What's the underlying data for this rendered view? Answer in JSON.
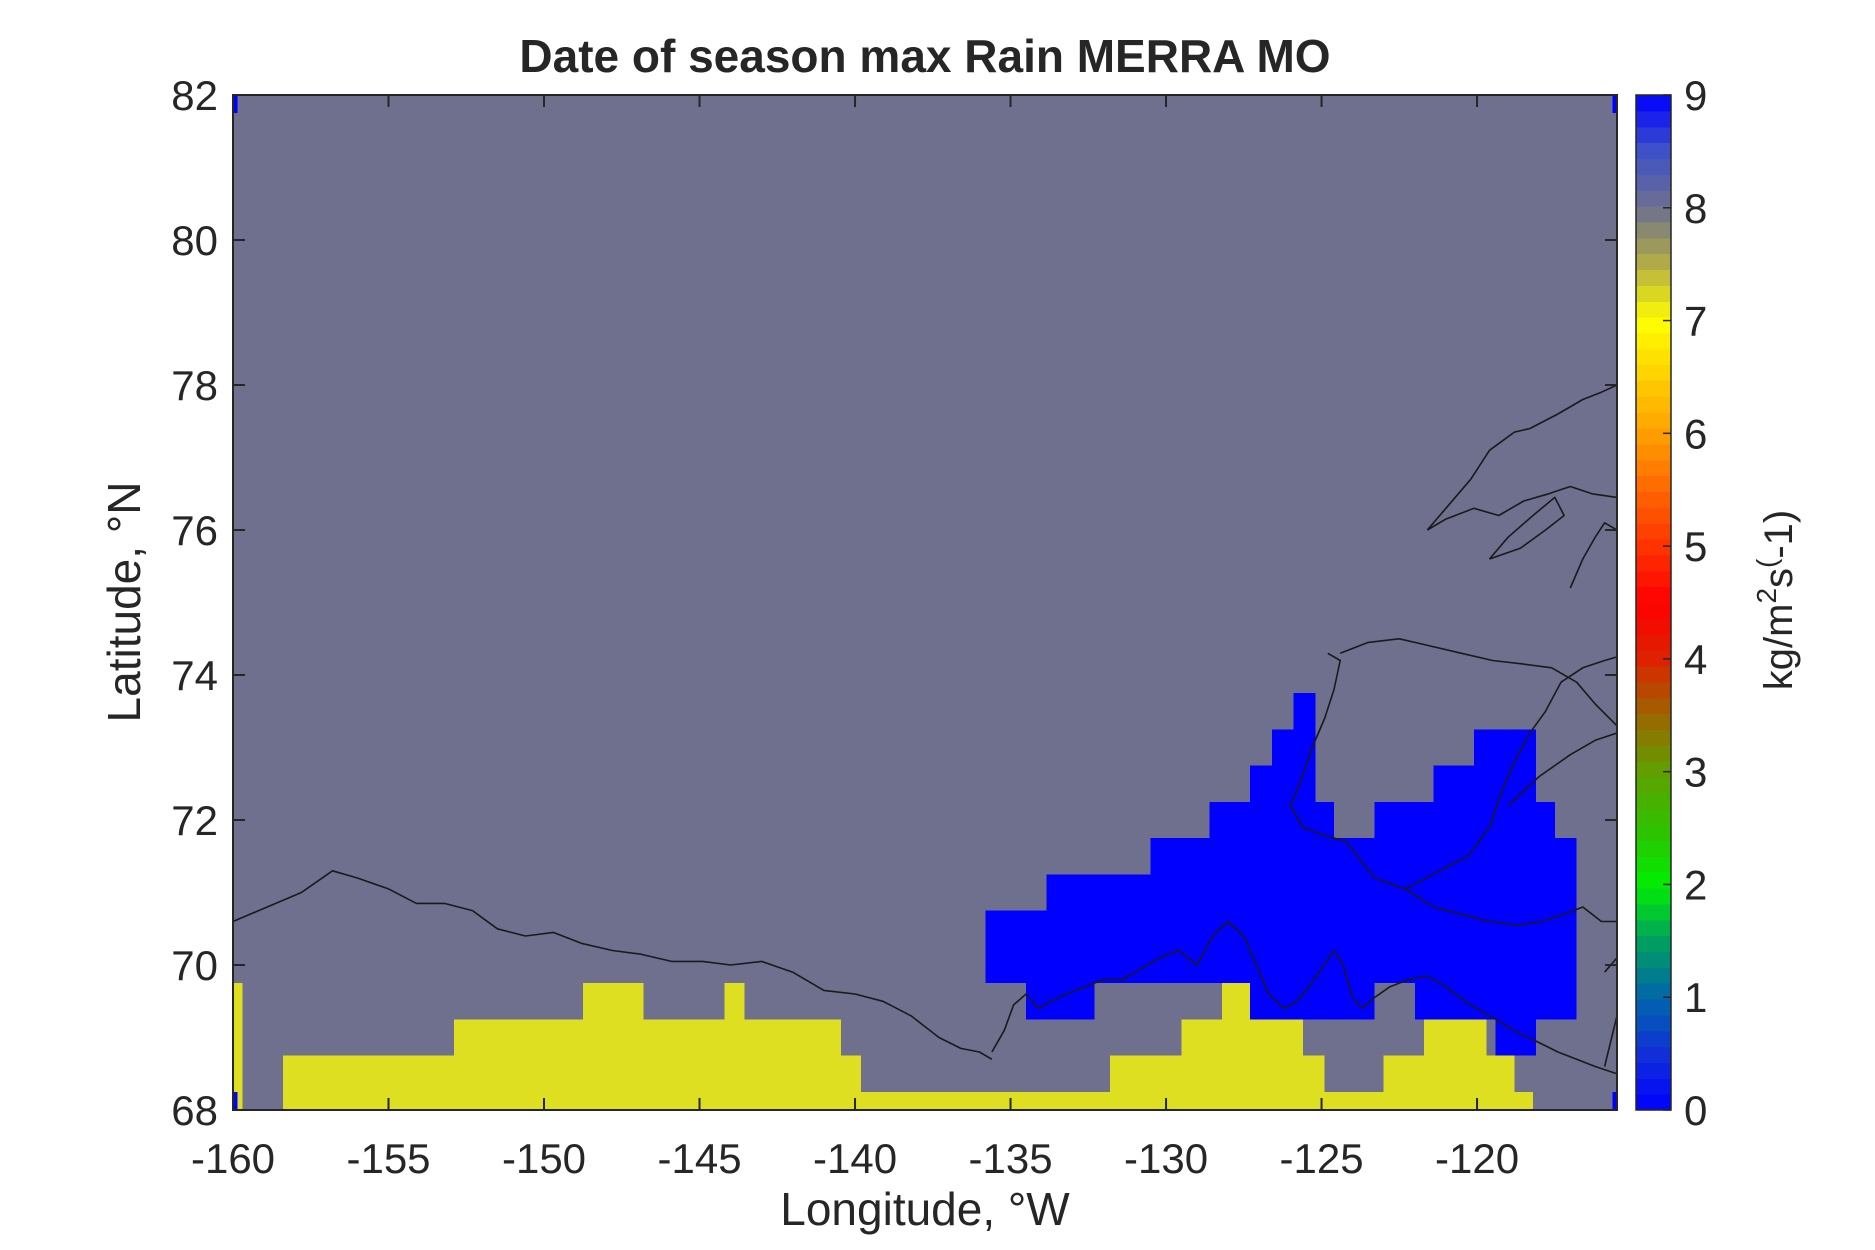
{
  "chart_data": {
    "type": "heatmap",
    "title": "Date of season max Rain MERRA MO",
    "xlabel": "Longitude, °W",
    "ylabel": "Latitude, °N",
    "xlim": [
      -160,
      -115.5
    ],
    "ylim": [
      68,
      82
    ],
    "xticks": [
      -160,
      -155,
      -150,
      -145,
      -140,
      -135,
      -130,
      -125,
      -120
    ],
    "yticks": [
      68,
      70,
      72,
      74,
      76,
      78,
      80,
      82
    ],
    "grid": false,
    "background_value": 8,
    "background_color": "#6e708e",
    "colorbar": {
      "label_base": "kg/m",
      "label_sup1": "2",
      "label_mid": "s",
      "label_sup2": "(",
      "label_end": "-1)",
      "range": [
        0,
        9
      ],
      "ticks": [
        0,
        1,
        2,
        3,
        4,
        5,
        6,
        7,
        8,
        9
      ],
      "stops": [
        {
          "v": 0,
          "c": "#0000ff"
        },
        {
          "v": 0.5,
          "c": "#1030d8"
        },
        {
          "v": 1,
          "c": "#0066aa"
        },
        {
          "v": 1.5,
          "c": "#00a060"
        },
        {
          "v": 2,
          "c": "#00ee00"
        },
        {
          "v": 2.5,
          "c": "#30c000"
        },
        {
          "v": 3,
          "c": "#60a000"
        },
        {
          "v": 3.5,
          "c": "#9c6600"
        },
        {
          "v": 4,
          "c": "#dd2200"
        },
        {
          "v": 4.5,
          "c": "#ff0000"
        },
        {
          "v": 5,
          "c": "#ff3300"
        },
        {
          "v": 5.5,
          "c": "#ff6600"
        },
        {
          "v": 6,
          "c": "#ffa000"
        },
        {
          "v": 6.5,
          "c": "#ffd000"
        },
        {
          "v": 7,
          "c": "#ffff00"
        },
        {
          "v": 7.5,
          "c": "#b3ad45"
        },
        {
          "v": 8,
          "c": "#6e708e"
        },
        {
          "v": 8.5,
          "c": "#3f52c8"
        },
        {
          "v": 9,
          "c": "#0000ff"
        }
      ]
    },
    "cells": [
      {
        "value": 7,
        "color": "#dfdf22",
        "lon": [
          -160,
          -159.7
        ],
        "lat": [
          68,
          69.75
        ]
      },
      {
        "value": 7,
        "color": "#dfdf22",
        "lon": [
          -158.4,
          -152.9
        ],
        "lat": [
          68,
          68.75
        ]
      },
      {
        "value": 7,
        "color": "#dfdf22",
        "lon": [
          -152.9,
          -148.75
        ],
        "lat": [
          68,
          69.25
        ]
      },
      {
        "value": 7,
        "color": "#dfdf22",
        "lon": [
          -148.75,
          -146.8
        ],
        "lat": [
          68,
          69.75
        ]
      },
      {
        "value": 7,
        "color": "#dfdf22",
        "lon": [
          -146.8,
          -144.2
        ],
        "lat": [
          68,
          69.25
        ]
      },
      {
        "value": 7,
        "color": "#dfdf22",
        "lon": [
          -144.2,
          -143.55
        ],
        "lat": [
          68,
          69.75
        ]
      },
      {
        "value": 7,
        "color": "#dfdf22",
        "lon": [
          -143.55,
          -140.45
        ],
        "lat": [
          68,
          69.25
        ]
      },
      {
        "value": 7,
        "color": "#dfdf22",
        "lon": [
          -140.45,
          -139.8
        ],
        "lat": [
          68,
          68.75
        ]
      },
      {
        "value": 7,
        "color": "#dfdf22",
        "lon": [
          -139.8,
          -131.8
        ],
        "lat": [
          68,
          68.25
        ]
      },
      {
        "value": 7,
        "color": "#dfdf22",
        "lon": [
          -131.8,
          -129.5
        ],
        "lat": [
          68,
          68.75
        ]
      },
      {
        "value": 7,
        "color": "#dfdf22",
        "lon": [
          -129.5,
          -128.2
        ],
        "lat": [
          68,
          69.25
        ]
      },
      {
        "value": 7,
        "color": "#dfdf22",
        "lon": [
          -128.2,
          -126.9
        ],
        "lat": [
          68,
          69.75
        ]
      },
      {
        "value": 7,
        "color": "#dfdf22",
        "lon": [
          -126.9,
          -125.6
        ],
        "lat": [
          68,
          69.25
        ]
      },
      {
        "value": 7,
        "color": "#dfdf22",
        "lon": [
          -125.6,
          -124.9
        ],
        "lat": [
          68,
          68.75
        ]
      },
      {
        "value": 7,
        "color": "#dfdf22",
        "lon": [
          -124.9,
          -123.0
        ],
        "lat": [
          68,
          68.25
        ]
      },
      {
        "value": 7,
        "color": "#dfdf22",
        "lon": [
          -123.0,
          -121.7
        ],
        "lat": [
          68,
          68.75
        ]
      },
      {
        "value": 7,
        "color": "#dfdf22",
        "lon": [
          -121.7,
          -119.7
        ],
        "lat": [
          68,
          69.25
        ]
      },
      {
        "value": 7,
        "color": "#dfdf22",
        "lon": [
          -119.7,
          -118.8
        ],
        "lat": [
          68,
          68.75
        ]
      },
      {
        "value": 7,
        "color": "#dfdf22",
        "lon": [
          -118.8,
          -118.2
        ],
        "lat": [
          68,
          68.25
        ]
      },
      {
        "value": 0,
        "color": "#0000ff",
        "lon": [
          -135.8,
          -133.85
        ],
        "lat": [
          69.75,
          70.75
        ]
      },
      {
        "value": 0,
        "color": "#0000ff",
        "lon": [
          -134.5,
          -133.85
        ],
        "lat": [
          69.25,
          69.75
        ]
      },
      {
        "value": 0,
        "color": "#0000ff",
        "lon": [
          -133.85,
          -132.3
        ],
        "lat": [
          69.25,
          71.25
        ]
      },
      {
        "value": 0,
        "color": "#0000ff",
        "lon": [
          -132.3,
          -130.5
        ],
        "lat": [
          69.75,
          71.25
        ]
      },
      {
        "value": 0,
        "color": "#0000ff",
        "lon": [
          -130.5,
          -128.6
        ],
        "lat": [
          69.75,
          71.75
        ]
      },
      {
        "value": 0,
        "color": "#0000ff",
        "lon": [
          -128.6,
          -127.3
        ],
        "lat": [
          69.75,
          72.25
        ]
      },
      {
        "value": 0,
        "color": "#0000ff",
        "lon": [
          -127.3,
          -126.6
        ],
        "lat": [
          69.25,
          72.75
        ]
      },
      {
        "value": 0,
        "color": "#0000ff",
        "lon": [
          -126.6,
          -125.9
        ],
        "lat": [
          69.25,
          73.25
        ]
      },
      {
        "value": 0,
        "color": "#0000ff",
        "lon": [
          -125.9,
          -125.2
        ],
        "lat": [
          69.25,
          73.75
        ]
      },
      {
        "value": 0,
        "color": "#0000ff",
        "lon": [
          -125.2,
          -124.6
        ],
        "lat": [
          69.25,
          72.25
        ]
      },
      {
        "value": 0,
        "color": "#0000ff",
        "lon": [
          -124.6,
          -123.3
        ],
        "lat": [
          69.25,
          71.75
        ]
      },
      {
        "value": 0,
        "color": "#0000ff",
        "lon": [
          -123.3,
          -122.0
        ],
        "lat": [
          69.75,
          72.25
        ]
      },
      {
        "value": 0,
        "color": "#0000ff",
        "lon": [
          -122.0,
          -121.4
        ],
        "lat": [
          69.25,
          72.25
        ]
      },
      {
        "value": 0,
        "color": "#0000ff",
        "lon": [
          -121.4,
          -120.1
        ],
        "lat": [
          69.25,
          72.75
        ]
      },
      {
        "value": 0,
        "color": "#0000ff",
        "lon": [
          -120.1,
          -119.4
        ],
        "lat": [
          69.25,
          73.25
        ]
      },
      {
        "value": 0,
        "color": "#0000ff",
        "lon": [
          -119.4,
          -118.1
        ],
        "lat": [
          68.75,
          73.25
        ]
      },
      {
        "value": 0,
        "color": "#0000ff",
        "lon": [
          -118.1,
          -117.5
        ],
        "lat": [
          69.25,
          72.25
        ]
      },
      {
        "value": 0,
        "color": "#0000ff",
        "lon": [
          -117.5,
          -116.8
        ],
        "lat": [
          69.25,
          71.75
        ]
      },
      {
        "value": 0,
        "color": "#0000ff",
        "lon": [
          -160,
          -159.85
        ],
        "lat": [
          81.75,
          82
        ]
      },
      {
        "value": 0,
        "color": "#0000ff",
        "lon": [
          -160,
          -159.85
        ],
        "lat": [
          68,
          68.25
        ]
      },
      {
        "value": 0,
        "color": "#0000ff",
        "lon": [
          -115.65,
          -115.5
        ],
        "lat": [
          81.75,
          82
        ]
      },
      {
        "value": 0,
        "color": "#0000ff",
        "lon": [
          -115.65,
          -115.5
        ],
        "lat": [
          68,
          68.25
        ]
      }
    ],
    "coastlines": [
      [
        [
          -160,
          70.6
        ],
        [
          -158.9,
          70.8
        ],
        [
          -157.8,
          71.0
        ],
        [
          -156.8,
          71.3
        ],
        [
          -156.0,
          71.2
        ],
        [
          -155.0,
          71.05
        ],
        [
          -154.1,
          70.85
        ],
        [
          -153.2,
          70.85
        ],
        [
          -152.3,
          70.75
        ],
        [
          -151.5,
          70.5
        ],
        [
          -150.6,
          70.4
        ],
        [
          -149.7,
          70.45
        ],
        [
          -148.8,
          70.3
        ],
        [
          -147.8,
          70.2
        ],
        [
          -146.9,
          70.15
        ],
        [
          -145.9,
          70.05
        ],
        [
          -144.9,
          70.05
        ],
        [
          -144.0,
          70.0
        ],
        [
          -143.0,
          70.05
        ],
        [
          -142.0,
          69.9
        ],
        [
          -141.0,
          69.65
        ],
        [
          -140.0,
          69.6
        ],
        [
          -139.1,
          69.5
        ],
        [
          -138.2,
          69.3
        ],
        [
          -137.3,
          69.0
        ],
        [
          -136.6,
          68.85
        ],
        [
          -136.0,
          68.8
        ],
        [
          -135.6,
          68.7
        ]
      ],
      [
        [
          -135.6,
          68.8
        ],
        [
          -135.2,
          69.1
        ],
        [
          -134.9,
          69.45
        ],
        [
          -134.5,
          69.6
        ],
        [
          -134.1,
          69.4
        ],
        [
          -133.7,
          69.5
        ],
        [
          -133.2,
          69.6
        ],
        [
          -132.6,
          69.7
        ],
        [
          -132.0,
          69.8
        ],
        [
          -131.4,
          69.8
        ],
        [
          -130.8,
          69.95
        ],
        [
          -130.2,
          70.1
        ],
        [
          -129.6,
          70.2
        ],
        [
          -129.0,
          70.0
        ],
        [
          -128.5,
          70.4
        ],
        [
          -128.0,
          70.6
        ],
        [
          -127.5,
          70.4
        ],
        [
          -127.1,
          70.0
        ],
        [
          -126.7,
          69.6
        ],
        [
          -126.2,
          69.4
        ],
        [
          -125.8,
          69.5
        ],
        [
          -125.4,
          69.7
        ],
        [
          -125.0,
          69.95
        ],
        [
          -124.6,
          70.2
        ],
        [
          -124.3,
          70.0
        ],
        [
          -124.0,
          69.55
        ],
        [
          -123.7,
          69.4
        ],
        [
          -123.3,
          69.55
        ],
        [
          -122.8,
          69.7
        ],
        [
          -122.2,
          69.8
        ],
        [
          -121.6,
          69.85
        ],
        [
          -121.0,
          69.7
        ],
        [
          -120.4,
          69.5
        ],
        [
          -119.8,
          69.35
        ],
        [
          -119.2,
          69.2
        ],
        [
          -118.6,
          69.05
        ],
        [
          -118.1,
          68.95
        ],
        [
          -117.4,
          68.8
        ],
        [
          -116.8,
          68.7
        ],
        [
          -116.2,
          68.6
        ],
        [
          -115.5,
          68.5
        ]
      ],
      [
        [
          -124.8,
          74.3
        ],
        [
          -124.4,
          74.2
        ],
        [
          -124.6,
          73.8
        ],
        [
          -124.9,
          73.4
        ],
        [
          -125.3,
          73.0
        ],
        [
          -125.7,
          72.5
        ],
        [
          -126.0,
          72.2
        ],
        [
          -125.6,
          71.9
        ],
        [
          -125.0,
          71.8
        ],
        [
          -124.2,
          71.7
        ],
        [
          -123.3,
          71.2
        ],
        [
          -122.3,
          71.05
        ],
        [
          -121.2,
          71.3
        ],
        [
          -120.3,
          71.5
        ],
        [
          -119.6,
          71.9
        ],
        [
          -119.2,
          72.4
        ],
        [
          -118.8,
          72.8
        ],
        [
          -118.3,
          73.2
        ],
        [
          -117.8,
          73.5
        ],
        [
          -117.3,
          73.9
        ],
        [
          -116.6,
          74.1
        ],
        [
          -115.9,
          74.2
        ],
        [
          -115.5,
          74.25
        ]
      ],
      [
        [
          -124.4,
          74.3
        ],
        [
          -123.5,
          74.45
        ],
        [
          -122.5,
          74.5
        ],
        [
          -121.5,
          74.4
        ],
        [
          -120.5,
          74.3
        ],
        [
          -119.5,
          74.2
        ],
        [
          -118.5,
          74.15
        ],
        [
          -117.6,
          74.1
        ],
        [
          -116.8,
          73.9
        ],
        [
          -116.2,
          73.6
        ],
        [
          -115.5,
          73.3
        ]
      ],
      [
        [
          -119.0,
          72.2
        ],
        [
          -118.0,
          72.6
        ],
        [
          -117.0,
          72.9
        ],
        [
          -116.2,
          73.1
        ],
        [
          -115.5,
          73.2
        ]
      ],
      [
        [
          -122.3,
          71.05
        ],
        [
          -121.4,
          70.8
        ],
        [
          -120.5,
          70.7
        ],
        [
          -119.6,
          70.6
        ],
        [
          -118.7,
          70.55
        ],
        [
          -117.9,
          70.6
        ],
        [
          -117.2,
          70.7
        ],
        [
          -116.6,
          70.8
        ],
        [
          -116.0,
          70.6
        ],
        [
          -115.5,
          70.6
        ]
      ],
      [
        [
          -121.6,
          76.0
        ],
        [
          -121.0,
          76.3
        ],
        [
          -120.2,
          76.7
        ],
        [
          -119.6,
          77.1
        ],
        [
          -118.8,
          77.35
        ],
        [
          -118.3,
          77.4
        ],
        [
          -117.4,
          77.6
        ],
        [
          -116.6,
          77.8
        ],
        [
          -116.0,
          77.9
        ],
        [
          -115.5,
          78.0
        ]
      ],
      [
        [
          -121.6,
          76.0
        ],
        [
          -121.0,
          76.15
        ],
        [
          -120.1,
          76.3
        ],
        [
          -119.3,
          76.2
        ],
        [
          -118.5,
          76.4
        ],
        [
          -117.7,
          76.5
        ],
        [
          -117.0,
          76.6
        ],
        [
          -116.3,
          76.5
        ],
        [
          -115.5,
          76.45
        ]
      ],
      [
        [
          -119.6,
          75.6
        ],
        [
          -119.0,
          75.9
        ],
        [
          -118.2,
          76.2
        ],
        [
          -117.5,
          76.45
        ],
        [
          -117.2,
          76.2
        ],
        [
          -117.8,
          76.0
        ],
        [
          -118.6,
          75.75
        ],
        [
          -119.6,
          75.6
        ]
      ],
      [
        [
          -117.0,
          75.2
        ],
        [
          -116.6,
          75.6
        ],
        [
          -116.2,
          75.9
        ],
        [
          -115.9,
          76.1
        ],
        [
          -115.5,
          76.0
        ]
      ],
      [
        [
          -115.9,
          68.6
        ],
        [
          -115.5,
          69.3
        ]
      ],
      [
        [
          -115.9,
          69.9
        ],
        [
          -115.5,
          70.1
        ]
      ]
    ]
  }
}
